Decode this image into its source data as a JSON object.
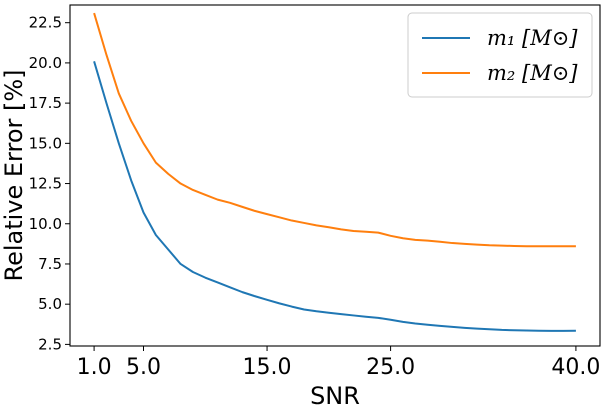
{
  "chart_data": {
    "type": "line",
    "title": "",
    "xlabel": "SNR",
    "ylabel": "Relative Error [%]",
    "x_ticks": [
      "1.0",
      "5.0",
      "15.0",
      "25.0",
      "40.0"
    ],
    "x_tick_values": [
      1.0,
      5.0,
      15.0,
      25.0,
      40.0
    ],
    "y_ticks": [
      "2.5",
      "5.0",
      "7.5",
      "10.0",
      "12.5",
      "15.0",
      "17.5",
      "20.0",
      "22.5"
    ],
    "y_tick_values": [
      2.5,
      5.0,
      7.5,
      10.0,
      12.5,
      15.0,
      17.5,
      20.0,
      22.5
    ],
    "xlim": [
      -0.95,
      41.95
    ],
    "ylim": [
      2.4,
      23.6
    ],
    "grid": false,
    "legend_position": "top-right",
    "series": [
      {
        "name": "m₁ [M⊙]",
        "color": "#1f77b4",
        "x": [
          1,
          2,
          3,
          4,
          5,
          6,
          7,
          8,
          9,
          10,
          11,
          12,
          13,
          14,
          15,
          16,
          17,
          18,
          19,
          20,
          21,
          22,
          23,
          24,
          25,
          26,
          27,
          28,
          29,
          30,
          31,
          32,
          33,
          34,
          35,
          36,
          37,
          38,
          39,
          40
        ],
        "y": [
          20.1,
          17.5,
          15.0,
          12.7,
          10.7,
          9.3,
          8.4,
          7.5,
          7.0,
          6.65,
          6.35,
          6.05,
          5.75,
          5.5,
          5.27,
          5.05,
          4.85,
          4.67,
          4.56,
          4.47,
          4.38,
          4.3,
          4.22,
          4.15,
          4.03,
          3.9,
          3.8,
          3.72,
          3.65,
          3.59,
          3.53,
          3.48,
          3.44,
          3.4,
          3.38,
          3.36,
          3.35,
          3.34,
          3.34,
          3.35
        ]
      },
      {
        "name": "m₂ [M⊙]",
        "color": "#ff7f0e",
        "x": [
          1,
          2,
          3,
          4,
          5,
          6,
          7,
          8,
          9,
          10,
          11,
          12,
          13,
          14,
          15,
          16,
          17,
          18,
          19,
          20,
          21,
          22,
          23,
          24,
          25,
          26,
          27,
          28,
          29,
          30,
          31,
          32,
          33,
          34,
          35,
          36,
          37,
          38,
          39,
          40
        ],
        "y": [
          23.1,
          20.5,
          18.1,
          16.4,
          15.0,
          13.8,
          13.1,
          12.5,
          12.1,
          11.8,
          11.5,
          11.3,
          11.05,
          10.8,
          10.6,
          10.4,
          10.2,
          10.05,
          9.9,
          9.78,
          9.65,
          9.55,
          9.5,
          9.45,
          9.25,
          9.1,
          9.0,
          8.95,
          8.88,
          8.8,
          8.75,
          8.7,
          8.66,
          8.64,
          8.62,
          8.6,
          8.6,
          8.6,
          8.6,
          8.6
        ]
      }
    ]
  }
}
